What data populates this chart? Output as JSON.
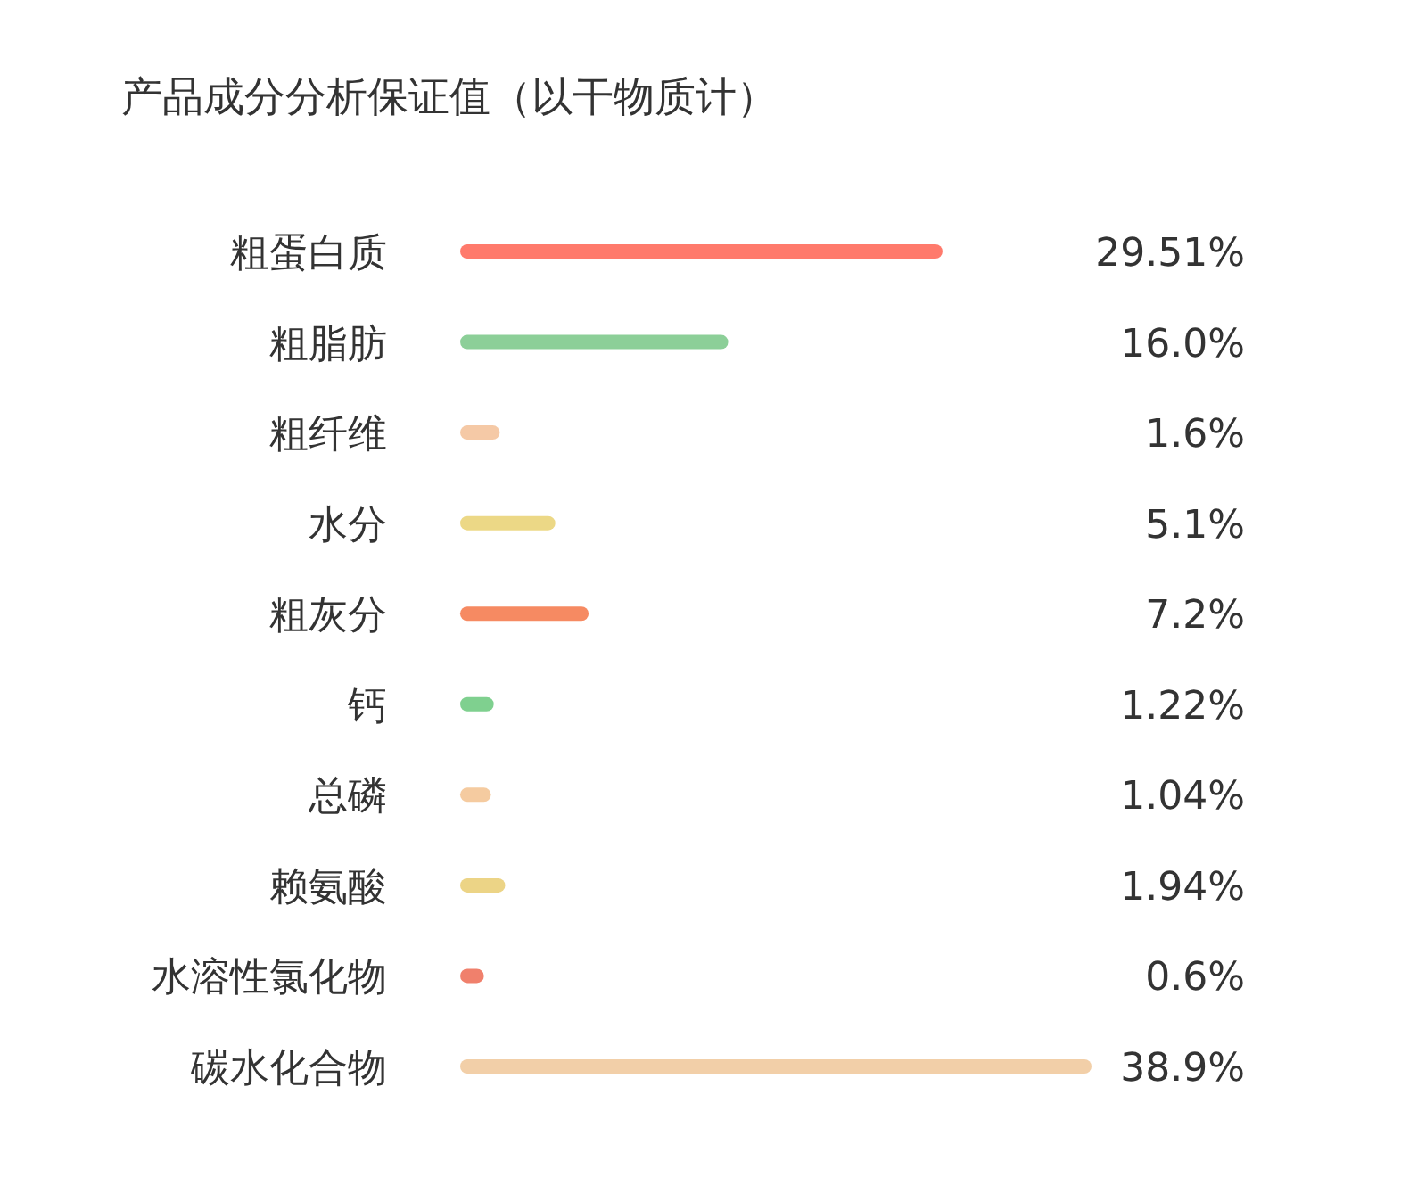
{
  "chart_data": {
    "type": "bar",
    "orientation": "horizontal",
    "title": "产品成分分析保证值（以干物质计）",
    "categories": [
      "粗蛋白质",
      "粗脂肪",
      "粗纤维",
      "水分",
      "粗灰分",
      "钙",
      "总磷",
      "赖氨酸",
      "水溶性氯化物",
      "碳水化合物"
    ],
    "values": [
      29.51,
      16.0,
      1.6,
      5.1,
      7.2,
      1.22,
      1.04,
      1.94,
      0.6,
      38.9
    ],
    "value_labels": [
      "29.51%",
      "16.0%",
      "1.6%",
      "5.1%",
      "7.2%",
      "1.22%",
      "1.04%",
      "1.94%",
      "0.6%",
      "38.9%"
    ],
    "colors": [
      "#ff7a6c",
      "#8ccf98",
      "#f5c9a6",
      "#ecd886",
      "#f68a62",
      "#7fd08f",
      "#f5cba0",
      "#ecd486",
      "#f0806c",
      "#f2cfa8"
    ]
  }
}
